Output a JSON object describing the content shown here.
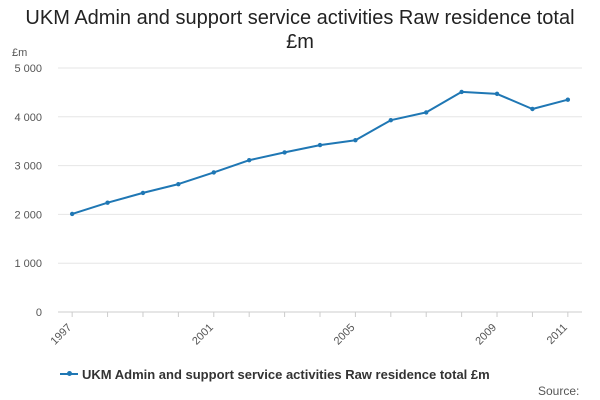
{
  "chart_data": {
    "type": "line",
    "title": "UKM Admin and support service activities Raw residence total £m",
    "ylabel": "£m",
    "xlabel": "",
    "ylim": [
      0,
      5000
    ],
    "y_ticks": [
      0,
      1000,
      2000,
      3000,
      4000,
      5000
    ],
    "y_tick_labels": [
      "0",
      "1 000",
      "2 000",
      "3 000",
      "4 000",
      "5 000"
    ],
    "x_tick_labels": [
      "1997",
      "2001",
      "2005",
      "2009",
      "2011"
    ],
    "grid": true,
    "legend_position": "bottom-left",
    "x": [
      1997,
      1998,
      1999,
      2000,
      2001,
      2002,
      2003,
      2004,
      2005,
      2006,
      2007,
      2008,
      2009,
      2010,
      2011
    ],
    "series": [
      {
        "name": "UKM Admin and support service activities Raw residence total £m",
        "color": "#1f77b4",
        "values": [
          2010,
          2240,
          2440,
          2620,
          2860,
          3110,
          3270,
          3420,
          3520,
          3930,
          4090,
          4510,
          4470,
          4160,
          4350
        ]
      }
    ]
  },
  "source_label": "Source:"
}
